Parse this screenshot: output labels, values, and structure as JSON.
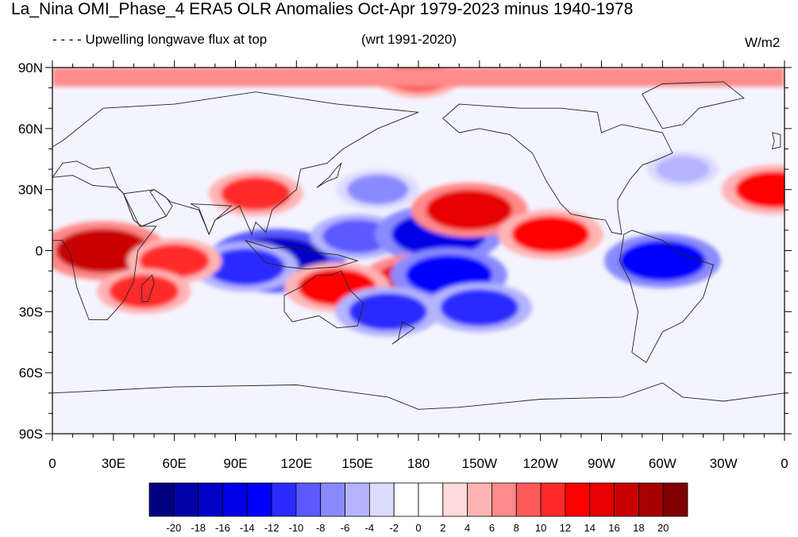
{
  "header": {
    "title": "La_Nina OMI_Phase_4 ERA5 OLR Anomalies Oct-Apr 1979-2023 minus 1940-1978",
    "subtitle": "- - - - Upwelling longwave flux at top",
    "reference": "(wrt 1991-2020)",
    "units": "W/m2"
  },
  "map": {
    "lat_labels": [
      "90N",
      "60N",
      "30N",
      "0",
      "30S",
      "60S",
      "90S"
    ],
    "lon_labels": [
      "0",
      "30E",
      "60E",
      "90E",
      "120E",
      "150E",
      "180",
      "150W",
      "120W",
      "90W",
      "60W",
      "30W",
      "0"
    ],
    "anomalies": [
      {
        "lon": 25,
        "lat": 0,
        "value": 16
      },
      {
        "lon": 110,
        "lat": -5,
        "value": -18
      },
      {
        "lon": 95,
        "lat": -8,
        "value": -12
      },
      {
        "lon": 150,
        "lat": 7,
        "value": -10
      },
      {
        "lon": 190,
        "lat": 8,
        "value": -16
      },
      {
        "lon": 205,
        "lat": 20,
        "value": 14
      },
      {
        "lon": 245,
        "lat": 8,
        "value": 12
      },
      {
        "lon": 300,
        "lat": -5,
        "value": -14
      },
      {
        "lon": 180,
        "lat": -15,
        "value": 14
      },
      {
        "lon": 195,
        "lat": -12,
        "value": -14
      },
      {
        "lon": 140,
        "lat": -18,
        "value": 12
      },
      {
        "lon": 165,
        "lat": -30,
        "value": -12
      },
      {
        "lon": 210,
        "lat": -28,
        "value": -12
      },
      {
        "lon": 60,
        "lat": -5,
        "value": 10
      },
      {
        "lon": 45,
        "lat": -20,
        "value": 10
      },
      {
        "lon": 100,
        "lat": 28,
        "value": 10
      },
      {
        "lon": 160,
        "lat": 30,
        "value": -8
      },
      {
        "lon": 355,
        "lat": 30,
        "value": 12
      },
      {
        "lon": 180,
        "lat": 85,
        "value": 8
      },
      {
        "lon": 310,
        "lat": 40,
        "value": -6
      }
    ]
  },
  "colorbar": {
    "labels": [
      "-20",
      "-18",
      "-16",
      "-14",
      "-12",
      "-10",
      "-8",
      "-6",
      "-4",
      "-2",
      "0",
      "2",
      "4",
      "6",
      "8",
      "10",
      "12",
      "14",
      "16",
      "18",
      "20"
    ],
    "colors": [
      "#000080",
      "#0000a8",
      "#0000c8",
      "#0000e6",
      "#0000ff",
      "#2b2bff",
      "#5a5aff",
      "#8a8aff",
      "#b4b4ff",
      "#dcdcff",
      "#ffffff",
      "#ffffff",
      "#ffdcdc",
      "#ffb4b4",
      "#ff8a8a",
      "#ff5a5a",
      "#ff2b2b",
      "#ff0000",
      "#e60000",
      "#c80000",
      "#a80000",
      "#800000"
    ]
  }
}
